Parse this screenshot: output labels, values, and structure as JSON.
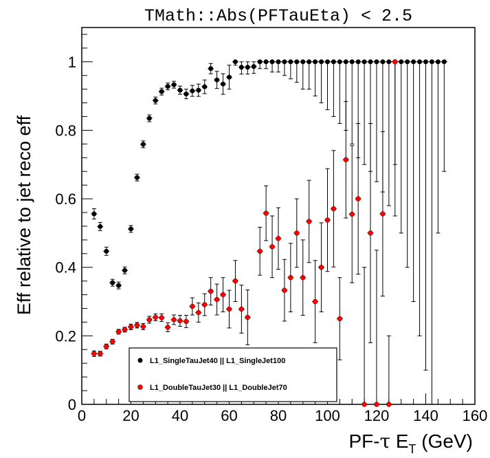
{
  "chart_data": {
    "type": "scatter",
    "title": "TMath::Abs(PFTauEta) < 2.5",
    "xlabel_main": "PF-",
    "xlabel_tau": "τ",
    "xlabel_e": " E",
    "xlabel_sub": "T",
    "xlabel_unit": " (GeV)",
    "ylabel": "Eff relative to jet reco eff",
    "xlim": [
      0,
      160
    ],
    "ylim": [
      0,
      1.1
    ],
    "xticks": [
      0,
      20,
      40,
      60,
      80,
      100,
      120,
      140,
      160
    ],
    "yticks": [
      0,
      0.2,
      0.4,
      0.6,
      0.8,
      1
    ],
    "xtick_labels": [
      "0",
      "20",
      "40",
      "60",
      "80",
      "100",
      "120",
      "140",
      "160"
    ],
    "ytick_labels": [
      "0",
      "0.2",
      "0.4",
      "0.6",
      "0.8",
      "1"
    ],
    "legend_position": "bottom-left",
    "x": [
      5,
      7.5,
      10,
      12.5,
      15,
      17.5,
      20,
      22.5,
      25,
      27.5,
      30,
      32.5,
      35,
      37.5,
      40,
      42.5,
      45,
      47.5,
      50,
      52.5,
      55,
      57.5,
      60,
      62.5,
      65,
      67.5,
      70,
      72.5,
      75,
      77.5,
      80,
      82.5,
      85,
      87.5,
      90,
      92.5,
      95,
      97.5,
      100,
      102.5,
      105,
      107.5,
      110,
      112.5,
      115,
      117.5,
      120,
      122.5,
      125,
      127.5,
      130,
      132.5,
      135,
      137.5,
      140,
      142.5,
      145,
      147.5
    ],
    "series": [
      {
        "name": "L1_SingleTauJet40 || L1_SingleJet100",
        "color": "#000000",
        "y": [
          0.556,
          0.519,
          0.447,
          0.355,
          0.347,
          0.391,
          0.512,
          0.662,
          0.759,
          0.835,
          0.887,
          0.913,
          0.928,
          0.933,
          0.917,
          0.906,
          0.915,
          0.917,
          0.927,
          0.98,
          0.947,
          0.935,
          0.955,
          1.0,
          0.984,
          0.984,
          0.986,
          1.0,
          1.0,
          1.0,
          1.0,
          1.0,
          1.0,
          1.0,
          1.0,
          1.0,
          1.0,
          1.0,
          1.0,
          1.0,
          1.0,
          1.0,
          1.0,
          1.0,
          1.0,
          1.0,
          1.0,
          1.0,
          1.0,
          1.0,
          1.0,
          1.0,
          1.0,
          1.0,
          1.0,
          1.0,
          1.0,
          1.0
        ],
        "err": [
          0.015,
          0.012,
          0.012,
          0.01,
          0.01,
          0.01,
          0.01,
          0.01,
          0.01,
          0.01,
          0.01,
          0.01,
          0.01,
          0.01,
          0.012,
          0.014,
          0.016,
          0.018,
          0.02,
          0.015,
          0.025,
          0.03,
          0.035,
          0.01,
          0.02,
          0.02,
          0.02,
          0.02,
          0.02,
          0.03,
          0.03,
          0.04,
          0.05,
          0.06,
          0.08,
          0.08,
          0.1,
          0.12,
          0.14,
          0.16,
          0.18,
          0.2,
          0.24,
          0.28,
          0.3,
          0.32,
          0.35,
          0.38,
          0.42,
          0.45,
          0.5,
          0.6,
          0.7,
          0.8,
          0.9,
          1.0,
          0.5,
          0.32
        ]
      },
      {
        "name": "L1_DoubleTauJet30 || L1_DoubleJet70",
        "color": "#ff0000",
        "y": [
          0.148,
          0.148,
          0.169,
          0.183,
          0.212,
          0.218,
          0.226,
          0.231,
          0.227,
          0.247,
          0.254,
          0.253,
          0.225,
          0.247,
          0.244,
          0.242,
          0.286,
          0.268,
          0.291,
          0.33,
          0.306,
          0.32,
          0.278,
          0.36,
          0.278,
          0.254,
          0.447,
          0.558,
          0.46,
          0.484,
          0.333,
          0.37,
          0.5,
          0.37,
          0.534,
          0.3,
          0.4,
          0.538,
          0.571,
          0.25,
          0.714,
          0.555,
          0.6,
          0.0,
          0.5,
          0.0,
          0.556,
          0.0,
          1.0
        ],
        "x": [
          5,
          7.5,
          10,
          12.5,
          15,
          17.5,
          20,
          22.5,
          25,
          27.5,
          30,
          32.5,
          35,
          37.5,
          40,
          42.5,
          45,
          47.5,
          50,
          52.5,
          55,
          57.5,
          60,
          62.5,
          65,
          67.5,
          72.5,
          75,
          77.5,
          80,
          82.5,
          85,
          87.5,
          90,
          92.5,
          95,
          97.5,
          100,
          102.5,
          105,
          107.5,
          110,
          112.5,
          115,
          117.5,
          120,
          122.5,
          125,
          127.5
        ],
        "err": [
          0.008,
          0.007,
          0.007,
          0.007,
          0.007,
          0.007,
          0.008,
          0.008,
          0.009,
          0.01,
          0.01,
          0.011,
          0.013,
          0.014,
          0.016,
          0.018,
          0.025,
          0.028,
          0.032,
          0.04,
          0.045,
          0.05,
          0.055,
          0.06,
          0.07,
          0.08,
          0.07,
          0.08,
          0.09,
          0.09,
          0.09,
          0.1,
          0.1,
          0.11,
          0.12,
          0.12,
          0.13,
          0.15,
          0.17,
          0.12,
          0.17,
          0.2,
          0.22,
          0.4,
          0.32,
          0.45,
          0.24,
          0.2,
          0.3
        ]
      }
    ]
  }
}
